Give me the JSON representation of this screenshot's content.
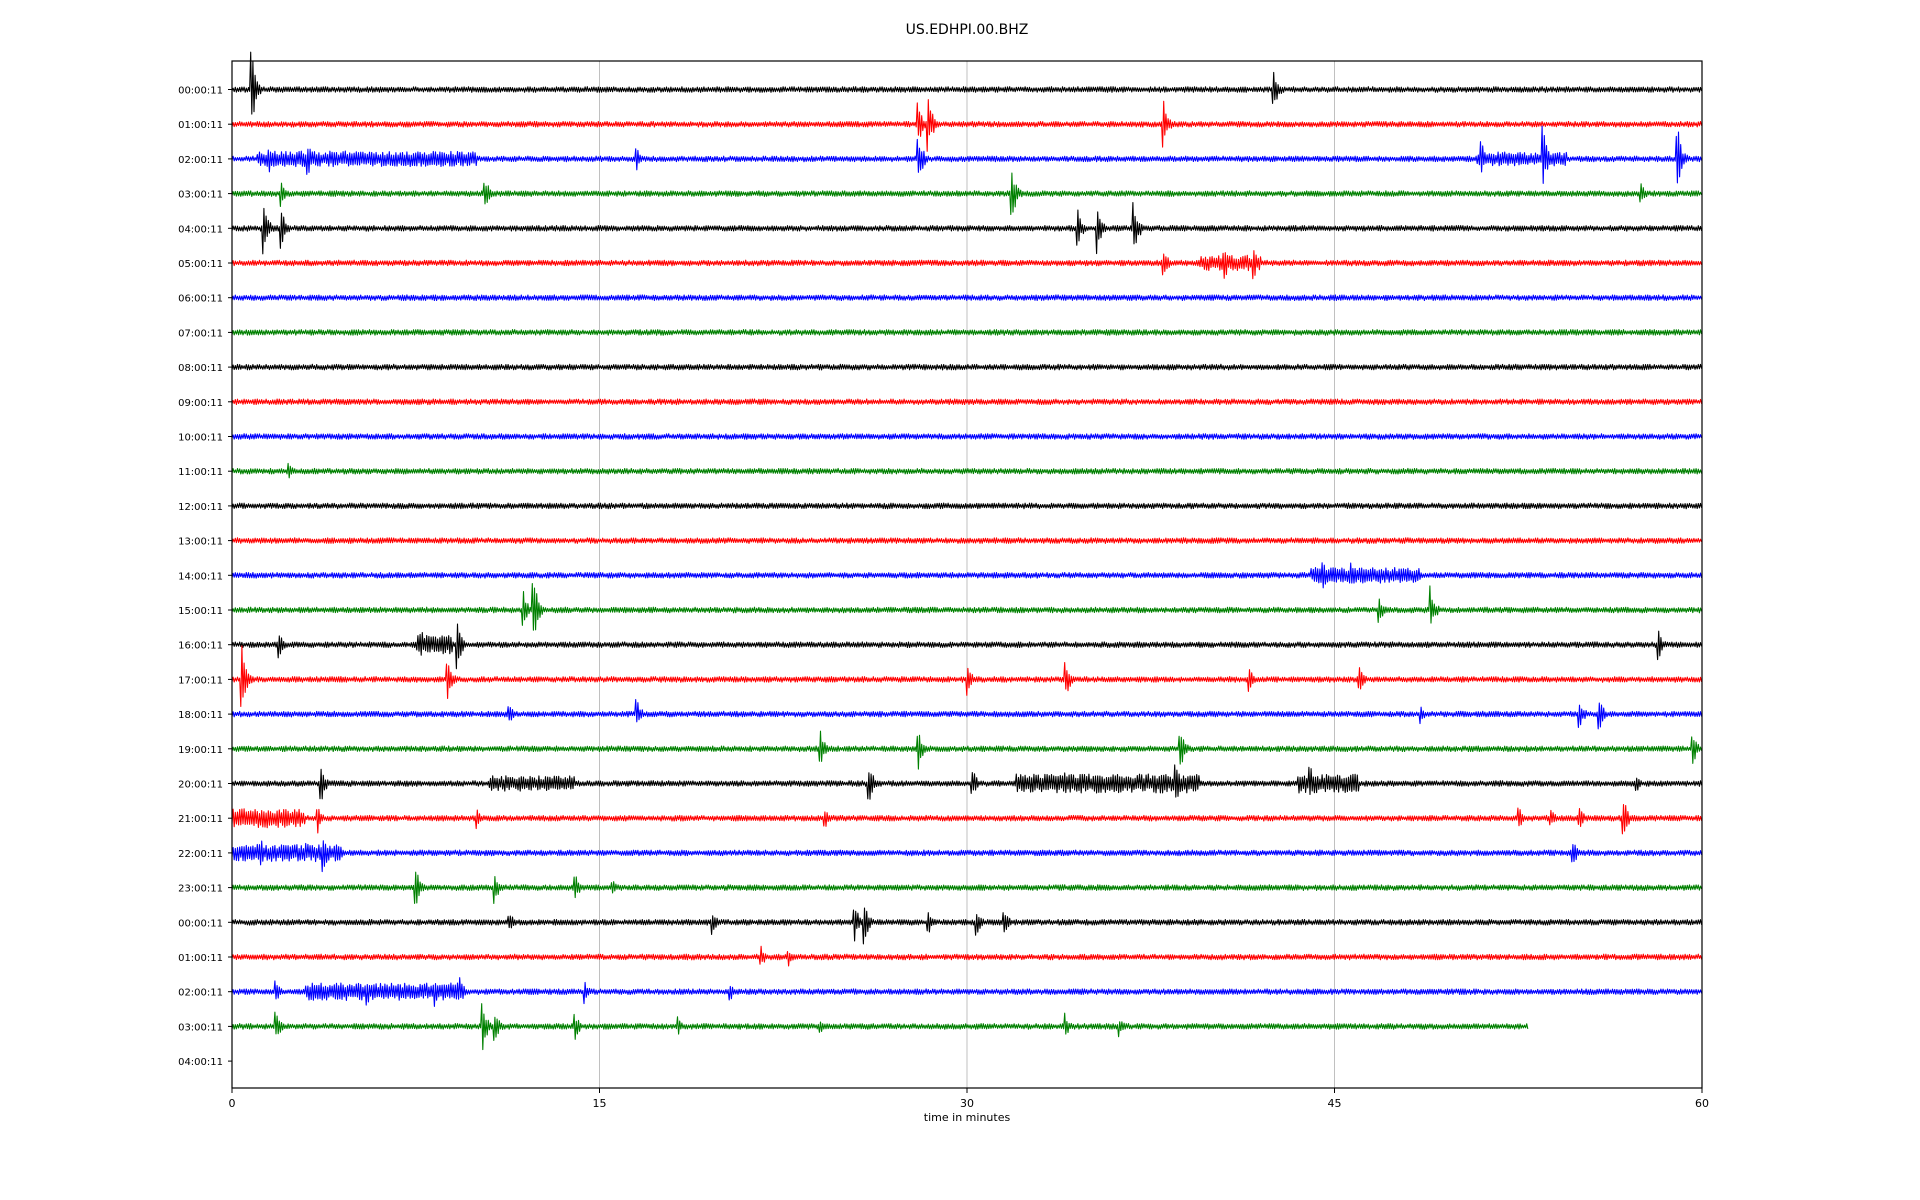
{
  "chart_data": {
    "type": "line",
    "title": "US.EDHPI.00.BHZ",
    "xlabel": "time in minutes",
    "ylabel": "",
    "xlim": [
      0,
      60
    ],
    "x_ticks": [
      0,
      15,
      30,
      45,
      60
    ],
    "grid": "vertical",
    "row_labels": [
      "00:00:11",
      "01:00:11",
      "02:00:11",
      "03:00:11",
      "04:00:11",
      "05:00:11",
      "06:00:11",
      "07:00:11",
      "08:00:11",
      "09:00:11",
      "10:00:11",
      "11:00:11",
      "12:00:11",
      "13:00:11",
      "14:00:11",
      "15:00:11",
      "16:00:11",
      "17:00:11",
      "18:00:11",
      "19:00:11",
      "20:00:11",
      "21:00:11",
      "22:00:11",
      "23:00:11",
      "00:00:11",
      "01:00:11",
      "02:00:11",
      "03:00:11",
      "04:00:11"
    ],
    "colors": [
      "#000000",
      "#ff0000",
      "#0000ff",
      "#008000"
    ],
    "last_trace_end_minute": 52.9,
    "events": [
      {
        "row": 0,
        "minute": 0.8,
        "amp": 2.2
      },
      {
        "row": 0,
        "minute": 42.5,
        "amp": 1.5
      },
      {
        "row": 1,
        "minute": 28.0,
        "amp": 1.3
      },
      {
        "row": 1,
        "minute": 28.4,
        "amp": 1.9
      },
      {
        "row": 1,
        "minute": 38.0,
        "amp": 1.6
      },
      {
        "row": 2,
        "minute": 1.5,
        "amp": 1.0
      },
      {
        "row": 2,
        "minute": 3.1,
        "amp": 1.0
      },
      {
        "row": 2,
        "minute": 16.5,
        "amp": 0.8
      },
      {
        "row": 2,
        "minute": 28.0,
        "amp": 1.7
      },
      {
        "row": 2,
        "minute": 51.0,
        "amp": 1.0
      },
      {
        "row": 2,
        "minute": 53.5,
        "amp": 2.1
      },
      {
        "row": 2,
        "minute": 59.0,
        "amp": 2.0
      },
      {
        "row": 3,
        "minute": 2.0,
        "amp": 0.8
      },
      {
        "row": 3,
        "minute": 10.3,
        "amp": 1.2
      },
      {
        "row": 3,
        "minute": 31.8,
        "amp": 2.0
      },
      {
        "row": 3,
        "minute": 57.5,
        "amp": 0.7
      },
      {
        "row": 4,
        "minute": 1.3,
        "amp": 1.6
      },
      {
        "row": 4,
        "minute": 2.0,
        "amp": 1.3
      },
      {
        "row": 4,
        "minute": 34.5,
        "amp": 1.3
      },
      {
        "row": 4,
        "minute": 35.3,
        "amp": 1.6
      },
      {
        "row": 4,
        "minute": 36.8,
        "amp": 1.8
      },
      {
        "row": 5,
        "minute": 38.0,
        "amp": 1.0
      },
      {
        "row": 5,
        "minute": 40.5,
        "amp": 1.2
      },
      {
        "row": 5,
        "minute": 41.7,
        "amp": 1.0
      },
      {
        "row": 11,
        "minute": 2.3,
        "amp": 0.5
      },
      {
        "row": 14,
        "minute": 44.5,
        "amp": 1.1
      },
      {
        "row": 14,
        "minute": 45.7,
        "amp": 0.8
      },
      {
        "row": 15,
        "minute": 11.9,
        "amp": 1.1
      },
      {
        "row": 15,
        "minute": 12.3,
        "amp": 2.0
      },
      {
        "row": 15,
        "minute": 46.8,
        "amp": 0.9
      },
      {
        "row": 15,
        "minute": 48.9,
        "amp": 1.6
      },
      {
        "row": 16,
        "minute": 1.9,
        "amp": 0.8
      },
      {
        "row": 16,
        "minute": 7.7,
        "amp": 1.1
      },
      {
        "row": 16,
        "minute": 9.2,
        "amp": 1.5
      },
      {
        "row": 16,
        "minute": 58.2,
        "amp": 1.0
      },
      {
        "row": 17,
        "minute": 0.4,
        "amp": 2.0
      },
      {
        "row": 17,
        "minute": 8.8,
        "amp": 1.2
      },
      {
        "row": 17,
        "minute": 30.0,
        "amp": 1.2
      },
      {
        "row": 17,
        "minute": 34.0,
        "amp": 1.3
      },
      {
        "row": 17,
        "minute": 41.5,
        "amp": 0.9
      },
      {
        "row": 17,
        "minute": 46.0,
        "amp": 1.0
      },
      {
        "row": 18,
        "minute": 11.3,
        "amp": 0.7
      },
      {
        "row": 18,
        "minute": 16.5,
        "amp": 1.0
      },
      {
        "row": 18,
        "minute": 48.5,
        "amp": 0.6
      },
      {
        "row": 18,
        "minute": 55.0,
        "amp": 0.9
      },
      {
        "row": 18,
        "minute": 55.8,
        "amp": 1.2
      },
      {
        "row": 19,
        "minute": 24.0,
        "amp": 1.4
      },
      {
        "row": 19,
        "minute": 28.0,
        "amp": 1.3
      },
      {
        "row": 19,
        "minute": 38.7,
        "amp": 1.3
      },
      {
        "row": 19,
        "minute": 59.6,
        "amp": 1.1
      },
      {
        "row": 20,
        "minute": 3.6,
        "amp": 1.4
      },
      {
        "row": 20,
        "minute": 26.0,
        "amp": 1.3
      },
      {
        "row": 20,
        "minute": 30.2,
        "amp": 1.0
      },
      {
        "row": 20,
        "minute": 34.0,
        "amp": 1.0
      },
      {
        "row": 20,
        "minute": 38.5,
        "amp": 1.4
      },
      {
        "row": 20,
        "minute": 44.0,
        "amp": 1.1
      },
      {
        "row": 20,
        "minute": 57.3,
        "amp": 0.7
      },
      {
        "row": 21,
        "minute": 3.5,
        "amp": 0.9
      },
      {
        "row": 21,
        "minute": 10.0,
        "amp": 0.6
      },
      {
        "row": 21,
        "minute": 24.2,
        "amp": 0.6
      },
      {
        "row": 21,
        "minute": 52.5,
        "amp": 0.8
      },
      {
        "row": 21,
        "minute": 53.8,
        "amp": 0.7
      },
      {
        "row": 21,
        "minute": 55.0,
        "amp": 0.7
      },
      {
        "row": 21,
        "minute": 56.8,
        "amp": 1.2
      },
      {
        "row": 22,
        "minute": 1.2,
        "amp": 0.8
      },
      {
        "row": 22,
        "minute": 3.0,
        "amp": 0.6
      },
      {
        "row": 22,
        "minute": 3.7,
        "amp": 1.4
      },
      {
        "row": 22,
        "minute": 54.7,
        "amp": 1.0
      },
      {
        "row": 23,
        "minute": 7.5,
        "amp": 1.4
      },
      {
        "row": 23,
        "minute": 10.7,
        "amp": 1.0
      },
      {
        "row": 23,
        "minute": 14.0,
        "amp": 0.9
      },
      {
        "row": 23,
        "minute": 15.5,
        "amp": 0.6
      },
      {
        "row": 24,
        "minute": 11.3,
        "amp": 0.7
      },
      {
        "row": 24,
        "minute": 19.6,
        "amp": 0.8
      },
      {
        "row": 24,
        "minute": 25.4,
        "amp": 1.2
      },
      {
        "row": 24,
        "minute": 25.8,
        "amp": 1.3
      },
      {
        "row": 24,
        "minute": 28.4,
        "amp": 0.8
      },
      {
        "row": 24,
        "minute": 30.4,
        "amp": 0.8
      },
      {
        "row": 24,
        "minute": 31.5,
        "amp": 0.9
      },
      {
        "row": 25,
        "minute": 21.6,
        "amp": 0.7
      },
      {
        "row": 25,
        "minute": 22.7,
        "amp": 0.6
      },
      {
        "row": 26,
        "minute": 1.8,
        "amp": 0.7
      },
      {
        "row": 26,
        "minute": 5.5,
        "amp": 0.9
      },
      {
        "row": 26,
        "minute": 8.3,
        "amp": 1.0
      },
      {
        "row": 26,
        "minute": 9.3,
        "amp": 0.9
      },
      {
        "row": 26,
        "minute": 14.4,
        "amp": 0.7
      },
      {
        "row": 26,
        "minute": 20.3,
        "amp": 0.8
      },
      {
        "row": 27,
        "minute": 1.8,
        "amp": 0.9
      },
      {
        "row": 27,
        "minute": 10.2,
        "amp": 1.7
      },
      {
        "row": 27,
        "minute": 10.7,
        "amp": 1.3
      },
      {
        "row": 27,
        "minute": 14.0,
        "amp": 0.8
      },
      {
        "row": 27,
        "minute": 18.2,
        "amp": 0.6
      },
      {
        "row": 27,
        "minute": 24.0,
        "amp": 0.6
      },
      {
        "row": 27,
        "minute": 34.0,
        "amp": 0.8
      },
      {
        "row": 27,
        "minute": 36.2,
        "amp": 0.6
      }
    ],
    "noisy_segments": [
      {
        "row": 2,
        "from": 1.0,
        "to": 10.0,
        "level": 0.45
      },
      {
        "row": 2,
        "from": 50.8,
        "to": 54.5,
        "level": 0.4
      },
      {
        "row": 5,
        "from": 39.5,
        "to": 42.0,
        "level": 0.45
      },
      {
        "row": 14,
        "from": 44.0,
        "to": 48.5,
        "level": 0.45
      },
      {
        "row": 16,
        "from": 7.5,
        "to": 9.0,
        "level": 0.55
      },
      {
        "row": 20,
        "from": 10.5,
        "to": 14.0,
        "level": 0.45
      },
      {
        "row": 20,
        "from": 32.0,
        "to": 39.5,
        "level": 0.55
      },
      {
        "row": 20,
        "from": 43.5,
        "to": 46.0,
        "level": 0.55
      },
      {
        "row": 21,
        "from": 0.0,
        "to": 3.0,
        "level": 0.55
      },
      {
        "row": 22,
        "from": 0.0,
        "to": 4.5,
        "level": 0.5
      },
      {
        "row": 26,
        "from": 3.0,
        "to": 9.5,
        "level": 0.5
      }
    ]
  }
}
